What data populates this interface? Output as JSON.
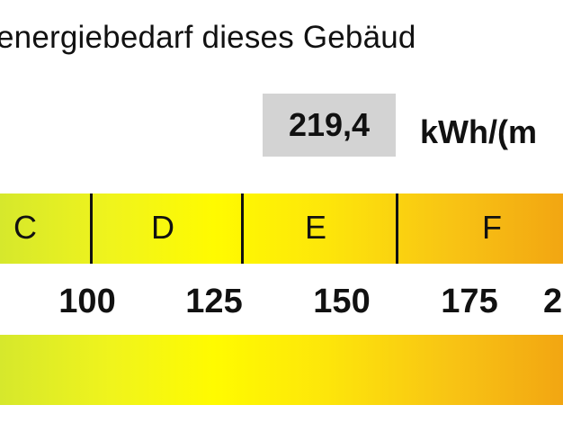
{
  "title": "energiebedarf dieses Gebäud",
  "value": "219,4",
  "unit": "kWh/(m",
  "classes": [
    "C",
    "D",
    "E",
    "F"
  ],
  "ticks": [
    "100",
    "125",
    "150",
    "175",
    "2"
  ],
  "colors": {
    "left": "#d6e82c",
    "middle": "#fffb00",
    "right": "#f2a612",
    "value_box": "#d3d3d3"
  }
}
